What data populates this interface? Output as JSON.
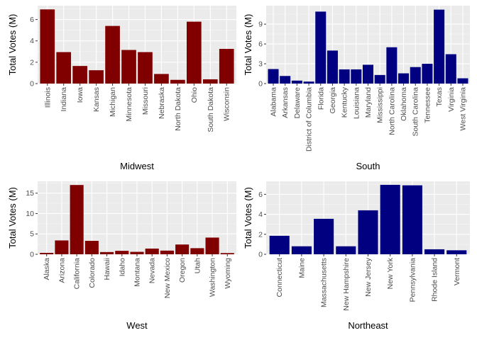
{
  "chart_data": [
    {
      "type": "bar",
      "title": "",
      "xlabel": "Midwest",
      "ylabel": "Total Votes (M)",
      "categories": [
        "Illinois",
        "Indiana",
        "Iowa",
        "Kansas",
        "Michigan",
        "Minnesota",
        "Missouri",
        "Nebraska",
        "North Dakota",
        "Ohio",
        "South Dakota",
        "Wisconsin"
      ],
      "values": [
        6.95,
        2.95,
        1.65,
        1.25,
        5.4,
        3.15,
        2.95,
        0.9,
        0.35,
        5.8,
        0.4,
        3.25
      ],
      "ylim": [
        0,
        7.3
      ],
      "yticks": [
        0,
        2,
        4,
        6
      ],
      "bar_color": "#800000",
      "grid": true,
      "legend": "none"
    },
    {
      "type": "bar",
      "title": "",
      "xlabel": "South",
      "ylabel": "Total Votes (M)",
      "categories": [
        "Alabama",
        "Arkansas",
        "Delaware",
        "District of Columbia",
        "Florida",
        "Georgia",
        "Kentucky",
        "Louisiana",
        "Maryland",
        "Mississippi",
        "North Carolina",
        "Oklahoma",
        "South Carolina",
        "Tennessee",
        "Texas",
        "Virginia",
        "West Virginia"
      ],
      "values": [
        2.2,
        1.15,
        0.45,
        0.3,
        10.9,
        5.0,
        2.15,
        2.15,
        2.85,
        1.3,
        5.5,
        1.55,
        2.5,
        3.0,
        11.2,
        4.45,
        0.8
      ],
      "ylim": [
        0,
        11.8
      ],
      "yticks": [
        0,
        3,
        6,
        9
      ],
      "bar_color": "#000080",
      "grid": true,
      "legend": "none"
    },
    {
      "type": "bar",
      "title": "",
      "xlabel": "West",
      "ylabel": "Total Votes (M)",
      "categories": [
        "Alaska",
        "Arizona",
        "California",
        "Colorado",
        "Hawaii",
        "Idaho",
        "Montana",
        "Nevada",
        "New Mexico",
        "Oregon",
        "Utah",
        "Washington",
        "Wyoming"
      ],
      "values": [
        0.35,
        3.4,
        17.0,
        3.3,
        0.55,
        0.85,
        0.6,
        1.4,
        0.9,
        2.4,
        1.5,
        4.1,
        0.3
      ],
      "ylim": [
        0,
        17.9
      ],
      "yticks": [
        0,
        5,
        10,
        15
      ],
      "bar_color": "#800000",
      "grid": true,
      "legend": "none"
    },
    {
      "type": "bar",
      "title": "",
      "xlabel": "Northeast",
      "ylabel": "Total Votes (M)",
      "categories": [
        "Connecticut",
        "Maine",
        "Massachusetts",
        "New Hampshire",
        "New Jersey",
        "New York",
        "Pennsylvania",
        "Rhode Island",
        "Vermont"
      ],
      "values": [
        1.85,
        0.8,
        3.55,
        0.8,
        4.4,
        6.95,
        6.9,
        0.5,
        0.4
      ],
      "ylim": [
        0,
        7.3
      ],
      "yticks": [
        0,
        2,
        4,
        6
      ],
      "bar_color": "#000080",
      "grid": true,
      "legend": "none"
    }
  ]
}
